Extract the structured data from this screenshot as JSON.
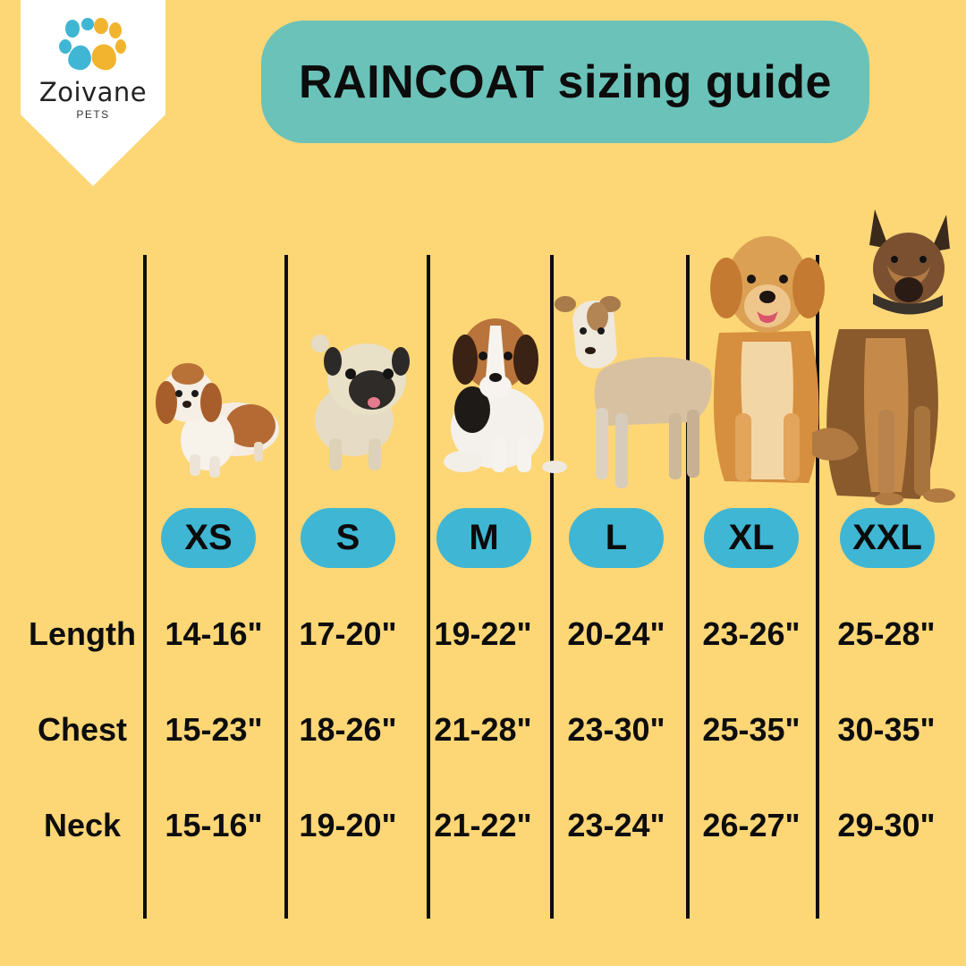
{
  "brand": {
    "name": "Zoivane",
    "sub": "PETS",
    "paw_colors": [
      "#3fb6d4",
      "#f2b42e"
    ]
  },
  "title": "RAINCOAT sizing guide",
  "colors": {
    "background": "#fdd676",
    "title_pill": "#6bc2b9",
    "size_pill": "#3fb6d4"
  },
  "sizes": [
    "XS",
    "S",
    "M",
    "L",
    "XL",
    "XXL"
  ],
  "rows": [
    {
      "label": "Length",
      "values": [
        "14-16\"",
        "17-20\"",
        "19-22\"",
        "20-24\"",
        "23-26\"",
        "25-28\""
      ]
    },
    {
      "label": "Chest",
      "values": [
        "15-23\"",
        "18-26\"",
        "21-28\"",
        "23-30\"",
        "25-35\"",
        "30-35\""
      ]
    },
    {
      "label": "Neck",
      "values": [
        "15-16\"",
        "19-20\"",
        "21-22\"",
        "23-24\"",
        "26-27\"",
        "29-30\""
      ]
    }
  ],
  "dog_images": [
    "shih-tzu",
    "pug",
    "beagle-puppy",
    "mixed-breed-dog",
    "golden-retriever",
    "german-shepherd"
  ]
}
